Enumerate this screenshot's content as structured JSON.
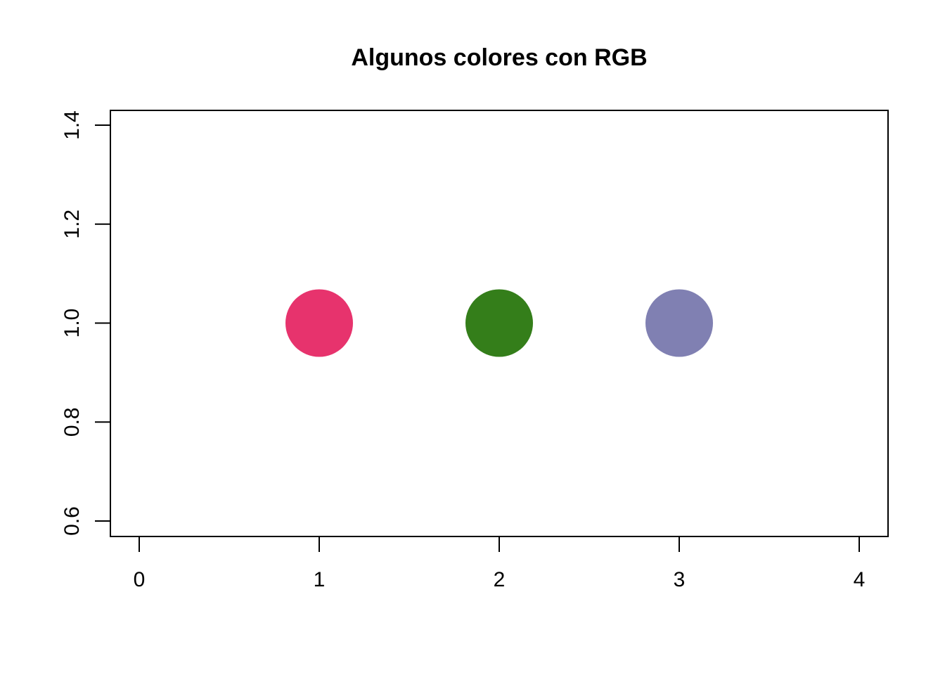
{
  "chart_data": {
    "type": "scatter",
    "title": "Algunos colores con RGB",
    "xlabel": "",
    "ylabel": "",
    "xlim": [
      0,
      4
    ],
    "ylim": [
      0.6,
      1.4
    ],
    "x_ticks": [
      0,
      1,
      2,
      3,
      4
    ],
    "x_tick_labels": [
      "0",
      "1",
      "2",
      "3",
      "4"
    ],
    "y_ticks": [
      0.6,
      0.8,
      1.0,
      1.2,
      1.4
    ],
    "y_tick_labels": [
      "0.6",
      "0.8",
      "1.0",
      "1.2",
      "1.4"
    ],
    "grid": false,
    "legend": false,
    "points": [
      {
        "x": 1,
        "y": 1.0,
        "color": "#E7336D"
      },
      {
        "x": 2,
        "y": 1.0,
        "color": "#347E1A"
      },
      {
        "x": 3,
        "y": 1.0,
        "color": "#8080B2"
      }
    ]
  }
}
